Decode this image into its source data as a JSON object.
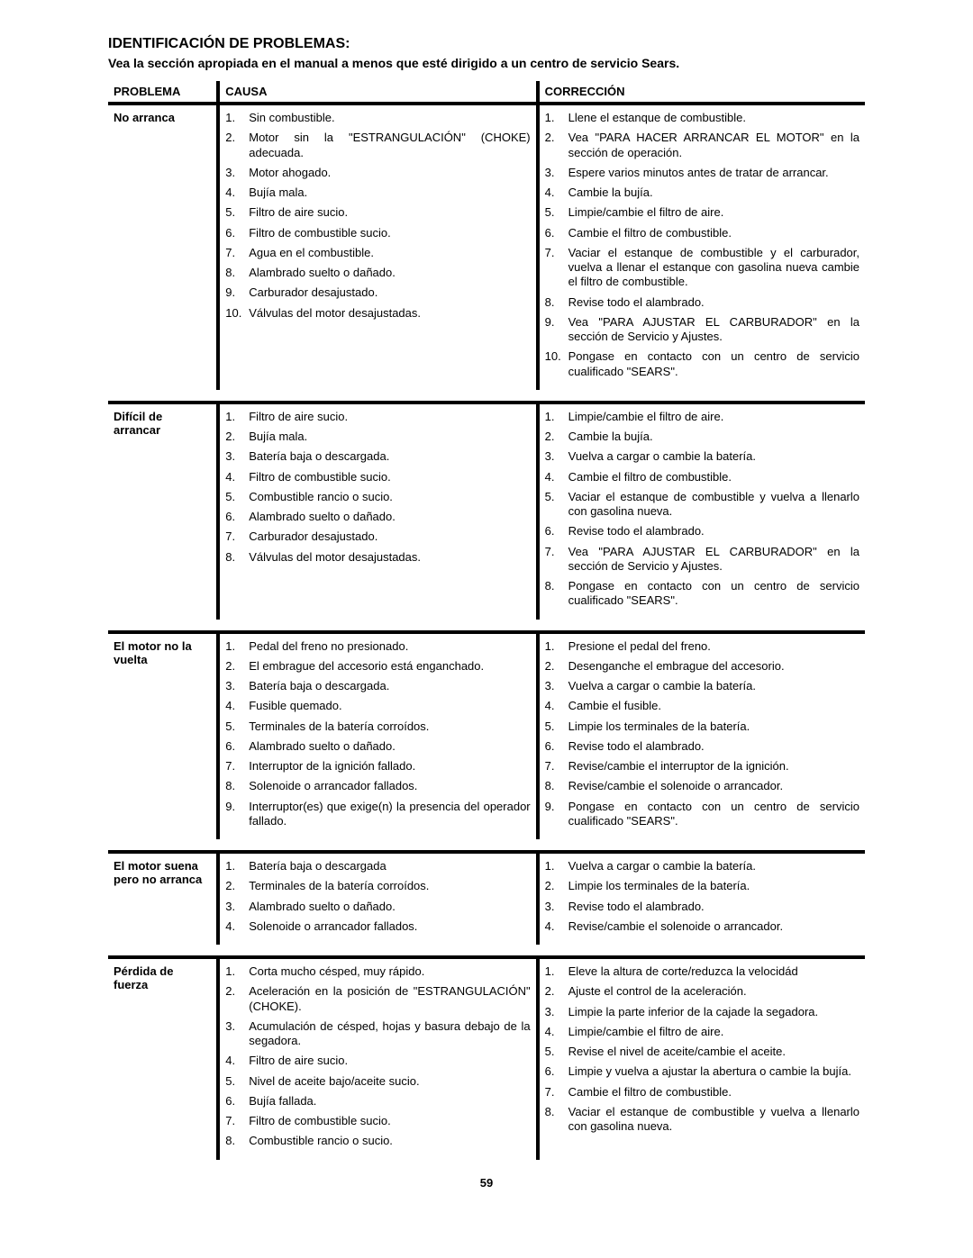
{
  "page": {
    "title": "IDENTIFICACIÓN DE PROBLEMAS:",
    "subtitle": "Vea la sección apropiada en el manual a menos que esté dirigido a un centro de servicio Sears.",
    "headers": {
      "problem": "PROBLEMA",
      "cause": "CAUSA",
      "fix": "CORRECCIÓN"
    },
    "pagenum": "59"
  },
  "sections": [
    {
      "problem": "No arranca",
      "causes": [
        "Sin combustible.",
        "Motor sin la \"ESTRANGULACIÓN\" (CHOKE) adecuada.",
        "Motor ahogado.",
        "Bujía mala.",
        "Filtro de aire sucio.",
        "Filtro de combustible sucio.",
        "Agua en el combustible.",
        "Alambrado suelto o dañado.",
        "Carburador desajustado.",
        "Válvulas del motor desajustadas."
      ],
      "fixes": [
        "Llene el estanque de combustible.",
        "Vea \"PARA HACER ARRANCAR EL MOTOR\" en la sección de operación.",
        "Espere varios minutos antes de tratar de arrancar.",
        "Cambie la bujía.",
        "Limpie/cambie el filtro de aire.",
        "Cambie el filtro de combustible.",
        "Vaciar el estanque de combustible y el carburador, vuelva a llenar el estanque con gasolina nueva cambie el filtro de combustible.",
        "Revise todo el alambrado.",
        "Vea \"PARA AJUSTAR EL CARBURADOR\" en la sección de Servicio y Ajustes.",
        "Pongase en contacto con un centro de servicio cualificado \"SEARS\"."
      ]
    },
    {
      "problem": "Difícil de arrancar",
      "causes": [
        "Filtro de aire sucio.",
        "Bujía mala.",
        "Batería baja o descargada.",
        "Filtro de combustible sucio.",
        "Combustible rancio o sucio.",
        "Alambrado suelto o dañado.",
        "Carburador desajustado.",
        "Válvulas del motor desajustadas."
      ],
      "fixes": [
        "Limpie/cambie el filtro de aire.",
        "Cambie la bujía.",
        "Vuelva a cargar o cambie la batería.",
        "Cambie el filtro de combustible.",
        "Vaciar el estanque de combustible y vuelva a llenarlo con gasolina nueva.",
        "Revise todo el alambrado.",
        "Vea \"PARA AJUSTAR EL CARBURADOR\" en la sección de Servicio y Ajustes.",
        "Pongase en contacto con un centro de servicio cualificado \"SEARS\"."
      ]
    },
    {
      "problem": "El motor no la vuelta",
      "causes": [
        "Pedal del freno no presionado.",
        "El embrague del accesorio está enganchado.",
        "Batería baja o descargada.",
        "Fusible quemado.",
        "Terminales de la batería corroídos.",
        "Alambrado suelto o dañado.",
        "Interruptor de la ignición fallado.",
        "Solenoide o arrancador fallados.",
        "Interruptor(es) que exige(n) la presencia del operador fallado."
      ],
      "fixes": [
        "Presione el pedal del freno.",
        "Desenganche el embrague del accesorio.",
        "Vuelva a cargar o cambie la batería.",
        "Cambie el fusible.",
        "Limpie los terminales de la batería.",
        "Revise todo el alambrado.",
        "Revise/cambie el interruptor de la ignición.",
        "Revise/cambie el solenoide o arrancador.",
        "Pongase en contacto con un centro de servicio cualificado \"SEARS\"."
      ]
    },
    {
      "problem": "El motor suena pero no arranca",
      "causes": [
        "Batería baja o descargada",
        "Terminales de la batería corroídos.",
        "Alambrado suelto o dañado.",
        "Solenoide o arrancador fallados."
      ],
      "fixes": [
        "Vuelva a cargar o cambie la batería.",
        "Limpie los terminales de la batería.",
        "Revise todo el alambrado.",
        "Revise/cambie el solenoide o arrancador."
      ]
    },
    {
      "problem": "Pérdida de fuerza",
      "causes": [
        "Corta mucho césped, muy rápido.",
        "Aceleración en la posición de \"ESTRANGULACIÓN\" (CHOKE).",
        "Acumulación de césped, hojas y basura debajo de la segadora.",
        "Filtro de aire sucio.",
        "Nivel de aceite bajo/aceite sucio.",
        "Bujía fallada.",
        "Filtro de combustible sucio.",
        "Combustible rancio o sucio."
      ],
      "fixes": [
        "Eleve la altura de corte/reduzca la velocidád",
        "Ajuste el control de la aceleración.",
        "Limpie la parte inferior de la cajade la segadora.",
        "Limpie/cambie el filtro de aire.",
        "Revise el nivel de aceite/cambie el aceite.",
        "Limpie y vuelva a ajustar la abertura o cambie la bujía.",
        "Cambie el filtro de combustible.",
        "Vaciar el estanque de combustible y vuelva a llenarlo con gasolina nueva."
      ]
    }
  ]
}
